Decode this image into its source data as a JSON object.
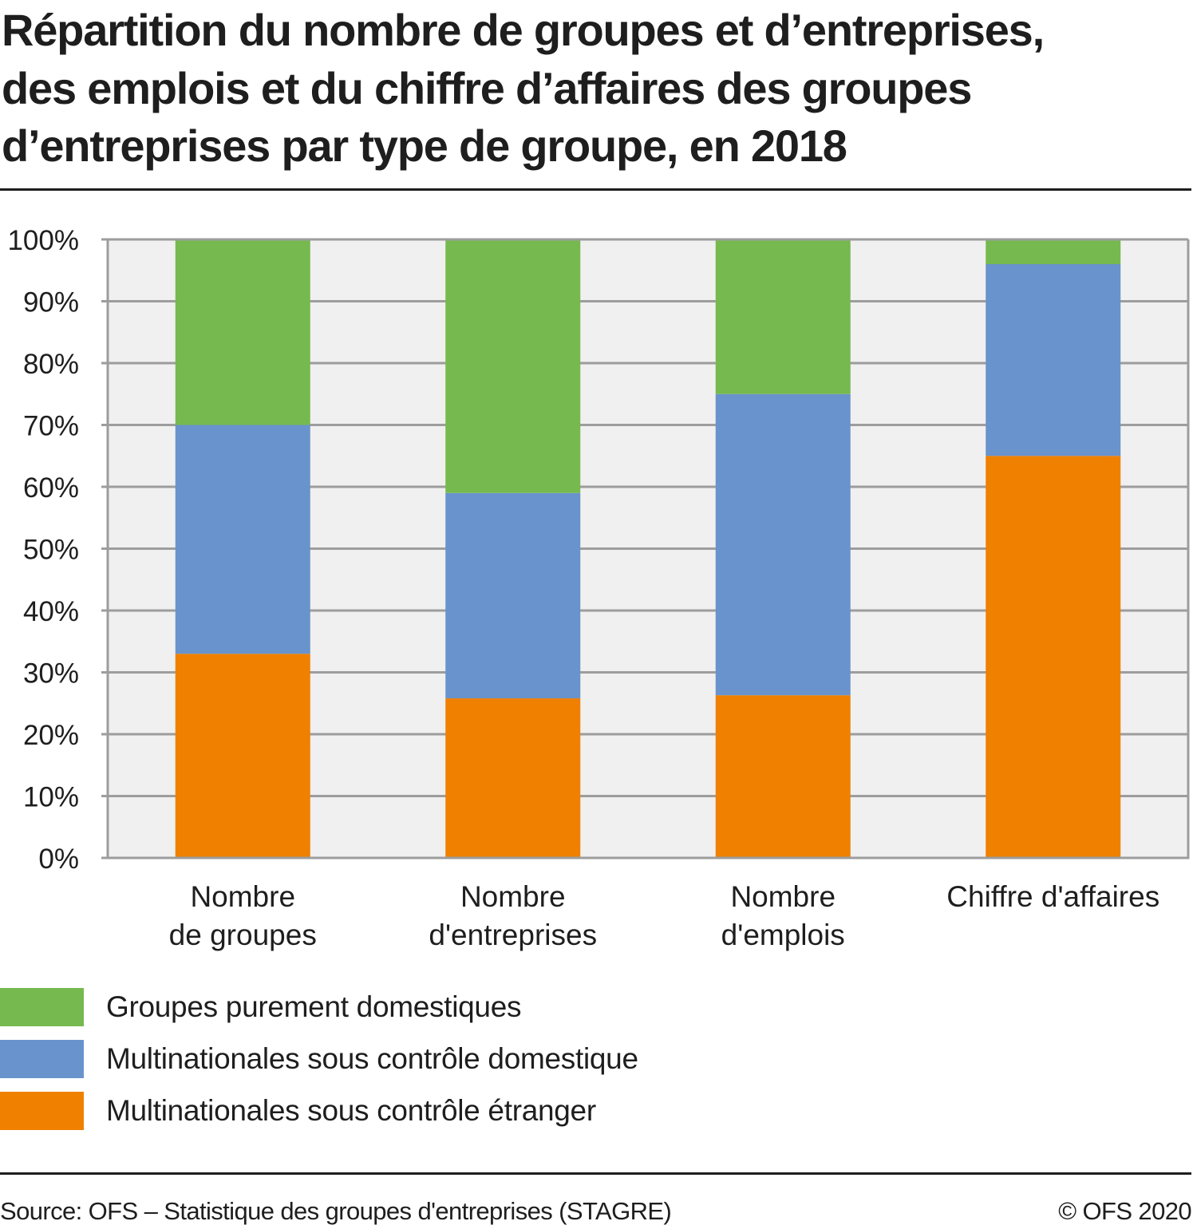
{
  "header": {
    "title_lines": [
      "Répartition du nombre de groupes et d’entreprises,",
      "des emplois et du chiffre d’affaires des groupes",
      "d’entreprises par type de groupe, en 2018"
    ]
  },
  "chart_data": {
    "type": "bar",
    "stacked": true,
    "orientation": "vertical",
    "title": "Répartition du nombre de groupes et d’entreprises, des emplois et du chiffre d’affaires des groupes d’entreprises par type de groupe, en 2018",
    "xlabel": "",
    "ylabel": "",
    "ylim": [
      0,
      100
    ],
    "yticks": [
      0,
      10,
      20,
      30,
      40,
      50,
      60,
      70,
      80,
      90,
      100
    ],
    "ytick_labels": [
      "0%",
      "10%",
      "20%",
      "30%",
      "40%",
      "50%",
      "60%",
      "70%",
      "80%",
      "90%",
      "100%"
    ],
    "grid": true,
    "categories": [
      [
        "Nombre",
        "de groupes"
      ],
      [
        "Nombre",
        "d'entreprises"
      ],
      [
        "Nombre",
        "d'emplois"
      ],
      [
        "Chiffre d'affaires"
      ]
    ],
    "series": [
      {
        "name": "Multinationales sous contrôle étranger",
        "color": "#ef8000",
        "values": [
          33.0,
          25.8,
          26.3,
          65.0
        ]
      },
      {
        "name": "Multinationales sous contrôle domestique",
        "color": "#6993cc",
        "values": [
          37.0,
          33.2,
          48.7,
          31.0
        ]
      },
      {
        "name": "Groupes purement domestiques",
        "color": "#76b94f",
        "values": [
          30.0,
          41.0,
          25.0,
          4.0
        ]
      }
    ],
    "legend": {
      "placement": "bottom-left",
      "order": [
        "Groupes purement domestiques",
        "Multinationales sous contrôle domestique",
        "Multinationales sous contrôle étranger"
      ]
    },
    "colors": {
      "plot_background": "#f0f0f0",
      "gridline": "#9d9d9d"
    }
  },
  "footer": {
    "source": "Source: OFS – Statistique des groupes d'entreprises (STAGRE)",
    "copyright": "© OFS 2020"
  }
}
